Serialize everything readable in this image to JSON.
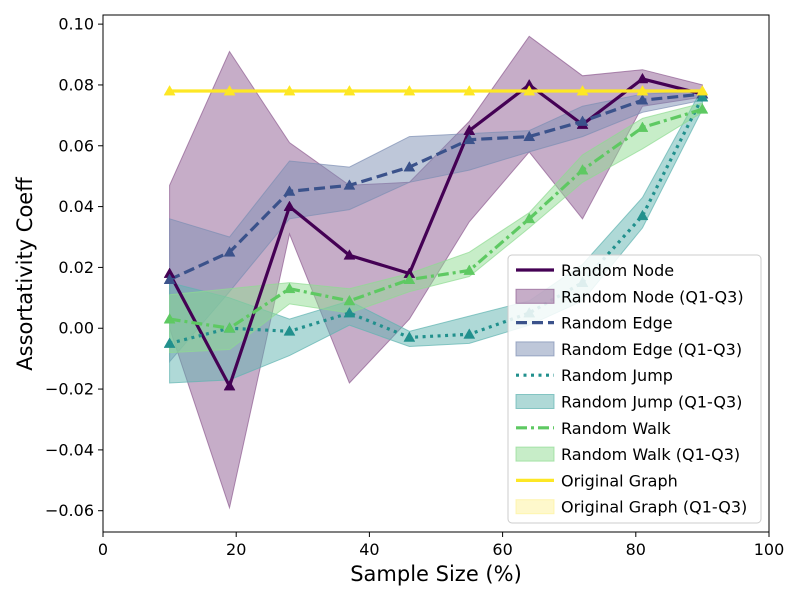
{
  "chart_data": {
    "type": "line",
    "title": "",
    "xlabel": "Sample Size (%)",
    "ylabel": "Assortativity Coeff",
    "xlim": [
      0,
      100
    ],
    "ylim": [
      -0.067,
      0.103
    ],
    "x_ticks": [
      0,
      20,
      40,
      60,
      80,
      100
    ],
    "x_tick_labels": [
      "0",
      "20",
      "40",
      "60",
      "80",
      "100"
    ],
    "y_ticks": [
      -0.06,
      -0.04,
      -0.02,
      0.0,
      0.02,
      0.04,
      0.06,
      0.08,
      0.1
    ],
    "y_tick_labels": [
      "−0.06",
      "−0.04",
      "−0.02",
      "0.00",
      "0.02",
      "0.04",
      "0.06",
      "0.08",
      "0.10"
    ],
    "grid": false,
    "legend_position": "lower-right",
    "x": [
      10,
      19,
      28,
      37,
      46,
      55,
      64,
      72,
      81,
      90
    ],
    "series": [
      {
        "name": "Random Node",
        "band_name": "Random Node (Q1-Q3)",
        "color": "#440154",
        "band_color": "#8e5c91",
        "line_style": "solid",
        "marker": "triangle",
        "values": [
          0.018,
          -0.019,
          0.04,
          0.024,
          0.018,
          0.065,
          0.08,
          0.067,
          0.082,
          0.077
        ],
        "q1": [
          0.0,
          -0.059,
          0.031,
          -0.018,
          0.003,
          0.035,
          0.058,
          0.036,
          0.073,
          0.076
        ],
        "q3": [
          0.047,
          0.091,
          0.061,
          0.047,
          0.048,
          0.068,
          0.096,
          0.083,
          0.085,
          0.08
        ]
      },
      {
        "name": "Random Edge",
        "band_name": "Random Edge (Q1-Q3)",
        "color": "#3b528b",
        "band_color": "#7e8fb3",
        "line_style": "dashed",
        "marker": "triangle",
        "values": [
          0.016,
          0.025,
          0.045,
          0.047,
          0.053,
          0.062,
          0.063,
          0.068,
          0.075,
          0.077
        ],
        "q1": [
          -0.011,
          0.012,
          0.036,
          0.039,
          0.048,
          0.052,
          0.058,
          0.063,
          0.071,
          0.075
        ],
        "q3": [
          0.036,
          0.03,
          0.055,
          0.053,
          0.063,
          0.064,
          0.065,
          0.073,
          0.077,
          0.078
        ]
      },
      {
        "name": "Random Jump",
        "band_name": "Random Jump (Q1-Q3)",
        "color": "#21908d",
        "band_color": "#5fb3b0",
        "line_style": "dotted",
        "marker": "triangle",
        "values": [
          -0.005,
          0.0,
          -0.001,
          0.005,
          -0.003,
          -0.002,
          0.005,
          0.015,
          0.037,
          0.076
        ],
        "q1": [
          -0.018,
          -0.017,
          -0.009,
          0.001,
          -0.006,
          -0.005,
          0.001,
          0.009,
          0.033,
          0.072
        ],
        "q3": [
          0.015,
          0.01,
          0.003,
          0.009,
          -0.001,
          0.004,
          0.009,
          0.021,
          0.043,
          0.079
        ]
      },
      {
        "name": "Random Walk",
        "band_name": "Random Walk (Q1-Q3)",
        "color": "#5ec962",
        "band_color": "#8fdc92",
        "line_style": "dashdot",
        "marker": "triangle",
        "values": [
          0.003,
          0.0,
          0.013,
          0.009,
          0.016,
          0.019,
          0.036,
          0.052,
          0.066,
          0.072
        ],
        "q1": [
          -0.008,
          -0.007,
          0.008,
          0.005,
          0.012,
          0.017,
          0.033,
          0.048,
          0.059,
          0.071
        ],
        "q3": [
          0.011,
          0.013,
          0.015,
          0.013,
          0.018,
          0.025,
          0.038,
          0.057,
          0.069,
          0.074
        ]
      },
      {
        "name": "Original Graph",
        "band_name": "Original Graph (Q1-Q3)",
        "color": "#fde725",
        "band_color": "#fdf29a",
        "line_style": "solid",
        "marker": "triangle",
        "values": [
          0.078,
          0.078,
          0.078,
          0.078,
          0.078,
          0.078,
          0.078,
          0.078,
          0.078,
          0.078
        ],
        "q1": [
          0.078,
          0.078,
          0.078,
          0.078,
          0.078,
          0.078,
          0.078,
          0.078,
          0.078,
          0.078
        ],
        "q3": [
          0.078,
          0.078,
          0.078,
          0.078,
          0.078,
          0.078,
          0.078,
          0.078,
          0.078,
          0.078
        ]
      }
    ]
  }
}
